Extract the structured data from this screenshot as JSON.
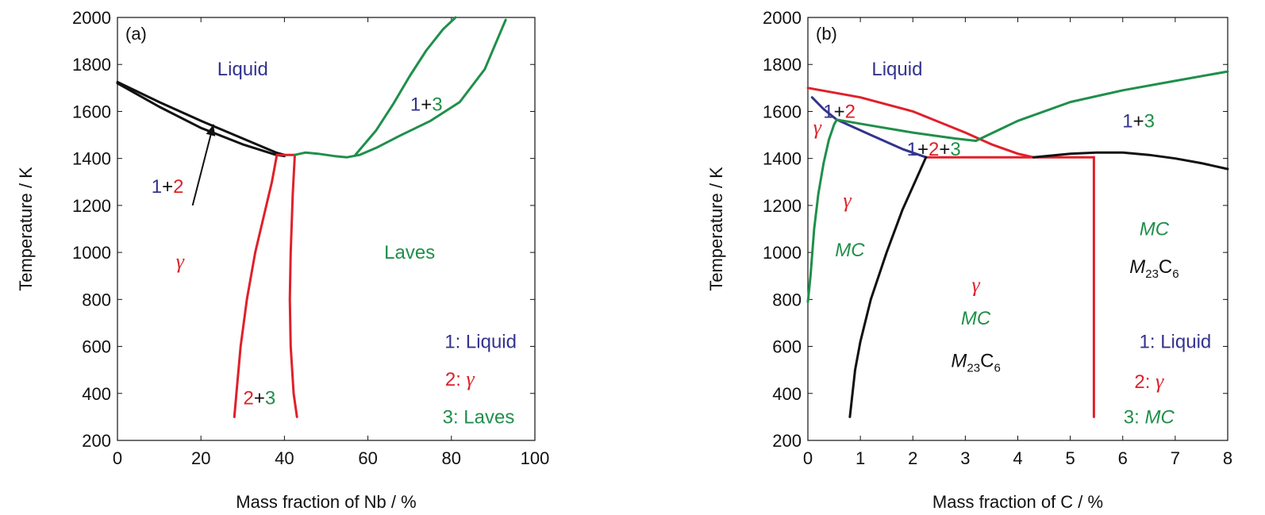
{
  "colors": {
    "liquid": "#33338f",
    "gamma": "#e0202a",
    "third": "#1f8f4a",
    "black": "#111111"
  },
  "chart_data": [
    {
      "type": "line",
      "panel_label": "(a)",
      "xlabel": "Mass fraction of Nb / %",
      "ylabel": "Temperature / K",
      "xlim": [
        0,
        100
      ],
      "ylim": [
        200,
        2000
      ],
      "xticks": [
        0,
        20,
        40,
        60,
        80,
        100
      ],
      "yticks": [
        200,
        400,
        600,
        800,
        1000,
        1200,
        1400,
        1600,
        1800,
        2000
      ],
      "series": [
        {
          "color": "black",
          "x": [
            0,
            10,
            20,
            30,
            38,
            40
          ],
          "y": [
            1725,
            1640,
            1560,
            1485,
            1425,
            1415
          ]
        },
        {
          "color": "black",
          "x": [
            0,
            10,
            20,
            30,
            38,
            40
          ],
          "y": [
            1720,
            1620,
            1530,
            1460,
            1415,
            1410
          ]
        },
        {
          "color": "gamma",
          "x": [
            38.2,
            37,
            35,
            33,
            31,
            29.5,
            28.5,
            28
          ],
          "y": [
            1415,
            1300,
            1150,
            1000,
            800,
            600,
            400,
            300
          ]
        },
        {
          "color": "gamma",
          "x": [
            38.2,
            42.5
          ],
          "y": [
            1415,
            1415
          ]
        },
        {
          "color": "gamma",
          "x": [
            42.5,
            42,
            41.5,
            41.3,
            41.5,
            42.2,
            43
          ],
          "y": [
            1415,
            1250,
            1000,
            800,
            600,
            400,
            300
          ]
        },
        {
          "color": "third",
          "x": [
            42.5,
            45,
            48,
            52,
            55,
            58,
            62,
            68,
            75,
            82,
            88,
            93
          ],
          "y": [
            1415,
            1425,
            1420,
            1410,
            1405,
            1415,
            1445,
            1500,
            1560,
            1640,
            1780,
            1990
          ]
        },
        {
          "color": "third",
          "x": [
            57,
            62,
            66,
            70,
            74,
            78,
            81
          ],
          "y": [
            1415,
            1520,
            1630,
            1750,
            1860,
            1950,
            2000
          ]
        }
      ],
      "labels": [
        {
          "text": "Liquid",
          "x": 30,
          "y": 1780,
          "color": "liquid"
        },
        {
          "text": "Laves",
          "x": 70,
          "y": 1000,
          "color": "third"
        },
        {
          "text": "γ",
          "x": 15,
          "y": 960,
          "color": "gamma",
          "greek": true
        },
        {
          "parts": [
            [
              "1",
              "liquid"
            ],
            [
              "+",
              "black"
            ],
            [
              "3",
              "third"
            ]
          ],
          "x": 74,
          "y": 1630
        },
        {
          "parts": [
            [
              "1",
              "liquid"
            ],
            [
              "+",
              "black"
            ],
            [
              "2",
              "gamma"
            ]
          ],
          "x": 12,
          "y": 1280
        },
        {
          "parts": [
            [
              "2",
              "gamma"
            ],
            [
              "+",
              "black"
            ],
            [
              "3",
              "third"
            ]
          ],
          "x": 34,
          "y": 380
        },
        {
          "parts": [
            [
              "1",
              "liquid"
            ],
            [
              ": Liquid",
              "liquid"
            ]
          ],
          "x": 87,
          "y": 620
        },
        {
          "parts": [
            [
              "2",
              "gamma"
            ],
            [
              ": ",
              "gamma"
            ],
            [
              "γ",
              "gamma",
              true
            ]
          ],
          "x": 82,
          "y": 460
        },
        {
          "parts": [
            [
              "3",
              "third"
            ],
            [
              ": Laves",
              "third"
            ]
          ],
          "x": 86.5,
          "y": 300
        }
      ],
      "arrow": {
        "from": [
          18,
          1200
        ],
        "to": [
          23,
          1545
        ]
      }
    },
    {
      "type": "line",
      "panel_label": "(b)",
      "xlabel": "Mass fraction of C / %",
      "ylabel": "Temperature / K",
      "xlim": [
        0,
        8
      ],
      "ylim": [
        200,
        2000
      ],
      "xticks": [
        0,
        1,
        2,
        3,
        4,
        5,
        6,
        7,
        8
      ],
      "yticks": [
        200,
        400,
        600,
        800,
        1000,
        1200,
        1400,
        1600,
        1800,
        2000
      ],
      "series": [
        {
          "color": "gamma",
          "x": [
            0,
            1,
            2,
            3,
            3.5,
            4,
            4.3
          ],
          "y": [
            1700,
            1660,
            1600,
            1510,
            1460,
            1420,
            1405
          ]
        },
        {
          "color": "gamma",
          "x": [
            2.25,
            5.45
          ],
          "y": [
            1405,
            1405
          ]
        },
        {
          "color": "gamma",
          "x": [
            5.45,
            5.45
          ],
          "y": [
            1405,
            300
          ]
        },
        {
          "color": "liquid",
          "x": [
            0.08,
            0.3,
            0.55
          ],
          "y": [
            1660,
            1610,
            1565
          ]
        },
        {
          "color": "liquid",
          "x": [
            0.55,
            1.2,
            1.8,
            2.25
          ],
          "y": [
            1565,
            1500,
            1440,
            1405
          ]
        },
        {
          "color": "third",
          "x": [
            0.55,
            1.2,
            2,
            2.8,
            3.2
          ],
          "y": [
            1565,
            1540,
            1510,
            1485,
            1475
          ]
        },
        {
          "color": "third",
          "x": [
            3.2,
            4,
            5,
            6,
            7,
            8
          ],
          "y": [
            1475,
            1560,
            1640,
            1690,
            1730,
            1770
          ]
        },
        {
          "color": "third",
          "x": [
            0,
            0.05,
            0.12,
            0.2,
            0.3,
            0.4,
            0.5,
            0.55
          ],
          "y": [
            790,
            900,
            1100,
            1250,
            1380,
            1480,
            1545,
            1565
          ]
        },
        {
          "color": "black",
          "x": [
            4.3,
            5,
            5.5,
            6,
            6.5,
            7,
            7.5,
            8
          ],
          "y": [
            1405,
            1420,
            1425,
            1425,
            1415,
            1400,
            1380,
            1355
          ]
        },
        {
          "color": "black",
          "x": [
            0.8,
            0.9,
            1,
            1.2,
            1.5,
            1.8,
            2.1,
            2.25
          ],
          "y": [
            300,
            500,
            620,
            800,
            1000,
            1180,
            1330,
            1405
          ]
        }
      ],
      "labels": [
        {
          "text": "Liquid",
          "x": 1.7,
          "y": 1780,
          "color": "liquid"
        },
        {
          "parts": [
            [
              "1",
              "liquid"
            ],
            [
              "+",
              "black"
            ],
            [
              "2",
              "gamma"
            ]
          ],
          "x": 0.6,
          "y": 1600
        },
        {
          "parts": [
            [
              "1",
              "liquid"
            ],
            [
              "+",
              "black"
            ],
            [
              "3",
              "third"
            ]
          ],
          "x": 6.3,
          "y": 1560
        },
        {
          "parts": [
            [
              "1",
              "liquid"
            ],
            [
              "+",
              "black"
            ],
            [
              "2",
              "gamma"
            ],
            [
              "+",
              "black"
            ],
            [
              "3",
              "third"
            ]
          ],
          "x": 2.4,
          "y": 1440
        },
        {
          "text": "γ",
          "x": 0.18,
          "y": 1530,
          "color": "gamma",
          "greek": true
        },
        {
          "text": "γ",
          "x": 0.75,
          "y": 1220,
          "color": "gamma",
          "greek": true
        },
        {
          "text": "MC",
          "x": 0.8,
          "y": 1010,
          "color": "third",
          "italic": true
        },
        {
          "text": "γ",
          "x": 3.2,
          "y": 860,
          "color": "gamma",
          "greek": true
        },
        {
          "text": "MC",
          "x": 3.2,
          "y": 720,
          "color": "third",
          "italic": true
        },
        {
          "text": "M",
          "sub": "23",
          "tail": "C",
          "sub2": "6",
          "x": 3.2,
          "y": 540,
          "color": "black"
        },
        {
          "text": "MC",
          "x": 6.6,
          "y": 1100,
          "color": "third",
          "italic": true
        },
        {
          "text": "M",
          "sub": "23",
          "tail": "C",
          "sub2": "6",
          "x": 6.6,
          "y": 940,
          "color": "black"
        },
        {
          "parts": [
            [
              "1",
              "liquid"
            ],
            [
              ": Liquid",
              "liquid"
            ]
          ],
          "x": 7.0,
          "y": 620
        },
        {
          "parts": [
            [
              "2",
              "gamma"
            ],
            [
              ": ",
              "gamma"
            ],
            [
              "γ",
              "gamma",
              true
            ]
          ],
          "x": 6.5,
          "y": 450
        },
        {
          "parts": [
            [
              "3",
              "third"
            ],
            [
              ": ",
              "third"
            ],
            [
              "MC",
              "third",
              "italic"
            ]
          ],
          "x": 6.5,
          "y": 300
        }
      ]
    }
  ]
}
